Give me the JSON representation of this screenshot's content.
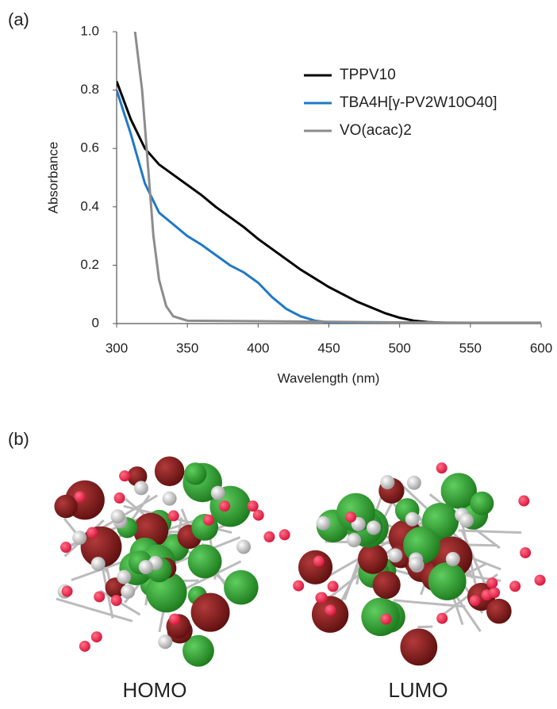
{
  "panels": [
    "(a)",
    "(b)"
  ],
  "chart_data": {
    "type": "line",
    "x_label": "Wavelength (nm)",
    "y_label": "Absorbance",
    "xlim": [
      300,
      600
    ],
    "xticks": [
      300,
      350,
      400,
      450,
      500,
      550,
      600
    ],
    "ylim": [
      0,
      1
    ],
    "yticks": [
      0,
      0.2,
      0.4,
      0.6,
      0.8,
      {
        "value": 1,
        "label": "1.0"
      }
    ],
    "legend": "upper right",
    "grid": false,
    "x": [
      300,
      310,
      320,
      330,
      340,
      350,
      360,
      370,
      380,
      390,
      400,
      410,
      420,
      430,
      440,
      450,
      460,
      470,
      480,
      490,
      500,
      510,
      520,
      530,
      540,
      550,
      560,
      570,
      580,
      590,
      600
    ],
    "series": [
      {
        "name": "TPPV10",
        "color": "#000000",
        "values": [
          0.83,
          0.7,
          0.6,
          0.545,
          0.51,
          0.475,
          0.44,
          0.4,
          0.365,
          0.33,
          0.29,
          0.255,
          0.22,
          0.185,
          0.155,
          0.125,
          0.1,
          0.075,
          0.055,
          0.035,
          0.02,
          0.01,
          0.005,
          0.003,
          0.002,
          0.002,
          0.002,
          0.002,
          0.002,
          0.002,
          0.002
        ]
      },
      {
        "name": "TBA4H[γ-PV2W10O40]",
        "color": "#1f78c8",
        "values": [
          0.8,
          0.65,
          0.48,
          0.38,
          0.34,
          0.3,
          0.27,
          0.235,
          0.2,
          0.175,
          0.14,
          0.09,
          0.05,
          0.025,
          0.01,
          0.004,
          0.002,
          0.002,
          0.002,
          0.002,
          0.002,
          0.002,
          0.002,
          0.002,
          0.002,
          0.002,
          0.002,
          0.002,
          0.002,
          0.002,
          0.002
        ]
      },
      {
        "name": "VO(acac)2",
        "color": "#8c8c8c",
        "x": [
          313,
          318,
          322,
          326,
          330,
          335,
          340,
          350,
          400,
          450,
          500,
          550,
          600
        ],
        "values": [
          1.0,
          0.8,
          0.55,
          0.3,
          0.15,
          0.06,
          0.025,
          0.01,
          0.008,
          0.006,
          0.004,
          0.003,
          0.003
        ]
      }
    ]
  },
  "orbitals": [
    "HOMO",
    "LUMO"
  ]
}
